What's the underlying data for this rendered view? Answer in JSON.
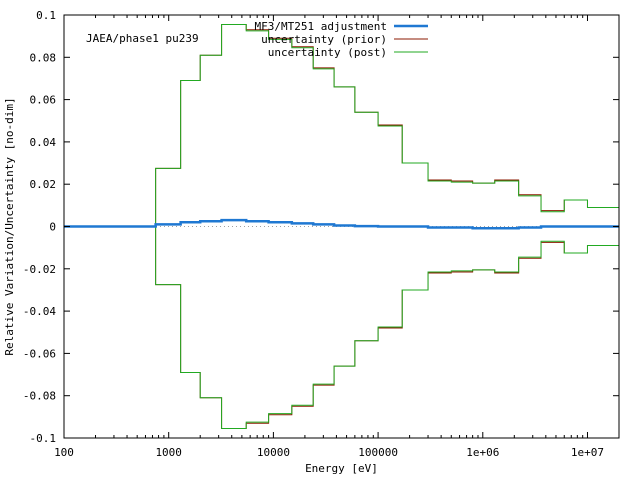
{
  "chart_data": {
    "type": "line",
    "title": "",
    "annotation": "JAEA/phase1 pu239",
    "xlabel": "Energy [eV]",
    "ylabel": "Relative Variation/Uncertainty [no-dim]",
    "xscale": "log",
    "xlim": [
      100,
      20000000
    ],
    "ylim": [
      -0.1,
      0.1
    ],
    "x_ticks": [
      100,
      1000,
      10000,
      100000,
      1000000,
      10000000
    ],
    "x_tick_labels": [
      "100",
      "1000",
      "10000",
      "100000",
      "1e+06",
      "1e+07"
    ],
    "y_ticks": [
      -0.1,
      -0.08,
      -0.06,
      -0.04,
      -0.02,
      0,
      0.02,
      0.04,
      0.06,
      0.08,
      0.1
    ],
    "y_tick_labels": [
      "-0.1",
      "-0.08",
      "-0.06",
      "-0.04",
      "-0.02",
      "0",
      "0.02",
      "0.04",
      "0.06",
      "0.08",
      "0.1"
    ],
    "legend_position": "top-right",
    "bin_edges": [
      100,
      750,
      1300,
      2000,
      3200,
      5500,
      9000,
      15000,
      24000,
      38000,
      60000,
      100000,
      170000,
      300000,
      500000,
      800000,
      1300000,
      2200000,
      3600000,
      6000000,
      10000000,
      20000000
    ],
    "series": [
      {
        "name": "MF3/MT251 adjustment",
        "style": "step",
        "color": "#1f78d2",
        "values": [
          0,
          0.001,
          0.002,
          0.0025,
          0.003,
          0.0025,
          0.002,
          0.0015,
          0.001,
          0.0005,
          0.0002,
          0,
          0,
          -0.0005,
          -0.0005,
          -0.0008,
          -0.0008,
          -0.0005,
          0,
          0,
          0
        ]
      },
      {
        "name": "uncertainty (prior)",
        "style": "step-envelope",
        "color": "#8b1a00",
        "values": [
          0,
          0.0275,
          0.069,
          0.081,
          0.0955,
          0.093,
          0.089,
          0.085,
          0.075,
          0.066,
          0.054,
          0.048,
          0.03,
          0.022,
          0.0215,
          0.0205,
          0.022,
          0.015,
          0.0075,
          0.0125,
          0.009
        ]
      },
      {
        "name": "uncertainty (post)",
        "style": "step-envelope",
        "color": "#22aa22",
        "values": [
          0,
          0.0275,
          0.069,
          0.081,
          0.0955,
          0.0925,
          0.0885,
          0.0845,
          0.0745,
          0.066,
          0.054,
          0.0475,
          0.03,
          0.0215,
          0.021,
          0.0205,
          0.0215,
          0.0145,
          0.007,
          0.0125,
          0.009
        ]
      }
    ]
  }
}
